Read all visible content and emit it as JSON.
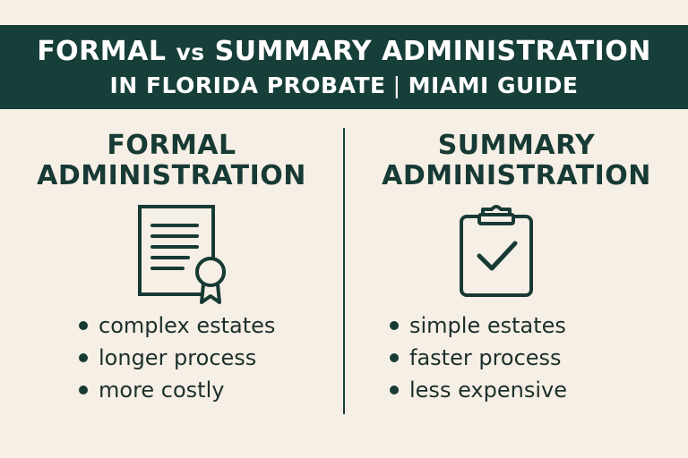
{
  "header": {
    "title_part1": "FORMAL",
    "title_vs": "vs",
    "title_part2": "SUMMARY ADMINISTRATION",
    "subtitle_part1": "IN FLORIDA PROBATE",
    "subtitle_sep": "|",
    "subtitle_part2": "MIAMI GUIDE"
  },
  "formal": {
    "title_line1": "FORMAL",
    "title_line2": "ADMINISTRATION",
    "icon": "certificate-document-icon",
    "bullets": [
      "complex estates",
      "longer process",
      "more costly"
    ]
  },
  "summary": {
    "title_line1": "SUMMARY",
    "title_line2": "ADMINISTRATION",
    "icon": "clipboard-check-icon",
    "bullets": [
      "simple estates",
      "faster process",
      "less expensive"
    ]
  },
  "colors": {
    "banner": "#173f3a",
    "background": "#f6efe5",
    "ink": "#173a35"
  }
}
